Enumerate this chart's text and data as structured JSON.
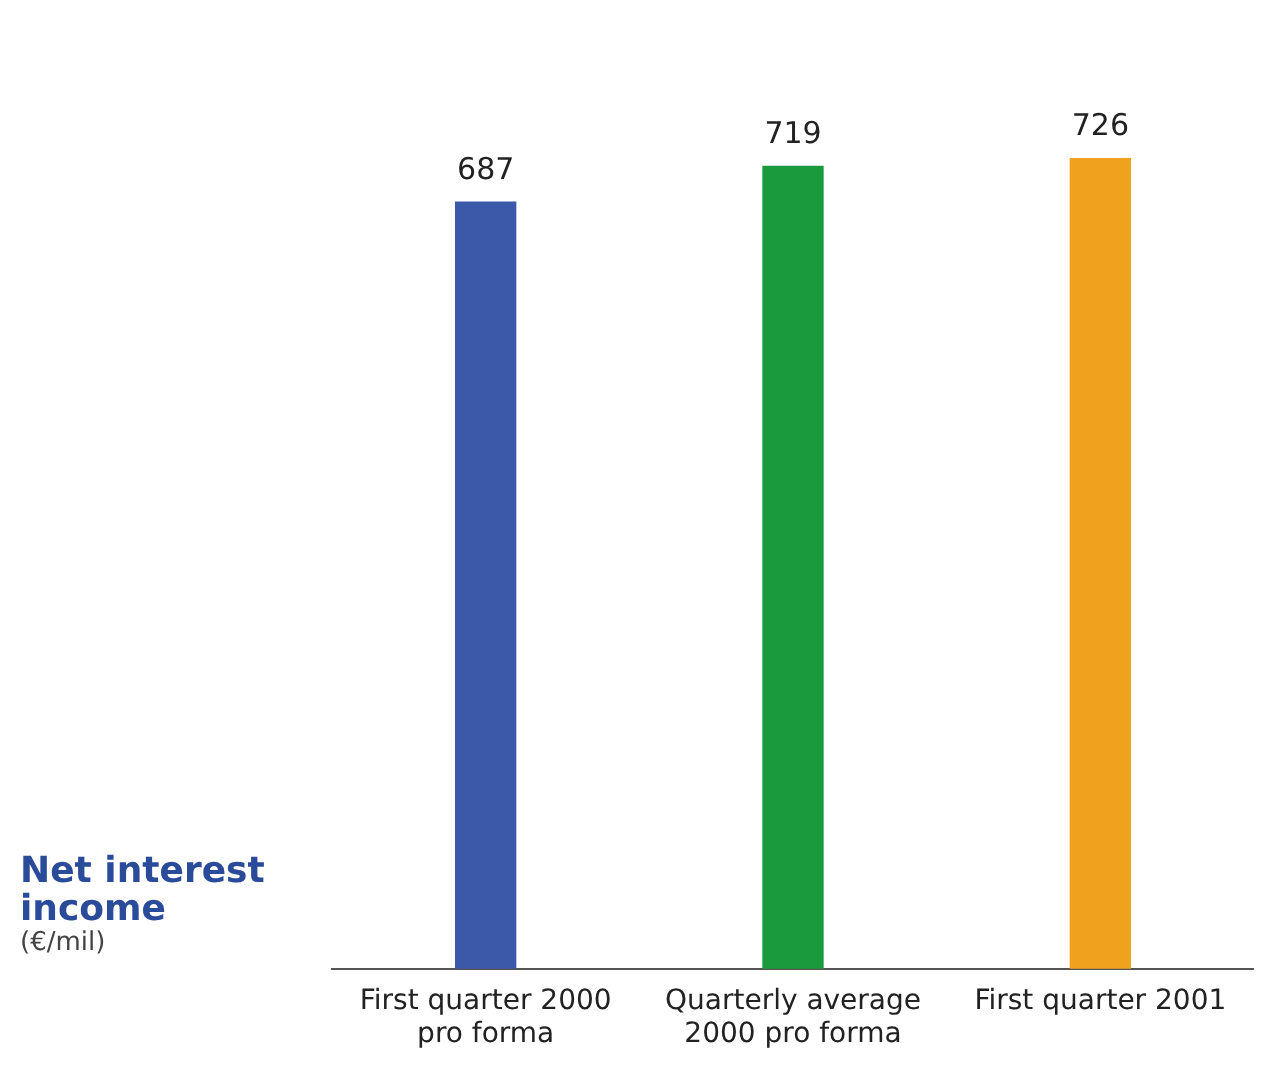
{
  "chart_data": {
    "type": "bar",
    "title": "Net interest income",
    "subtitle": "(€/mil)",
    "categories": [
      "First quarter 2000 pro forma",
      "Quarterly average 2000 pro forma",
      "First quarter 2001"
    ],
    "values": [
      687,
      719,
      726
    ],
    "colors": [
      "#3c58a8",
      "#1a9a3c",
      "#f0a21e"
    ],
    "relative": false,
    "data_labels": true,
    "grid": false,
    "legend": false
  }
}
